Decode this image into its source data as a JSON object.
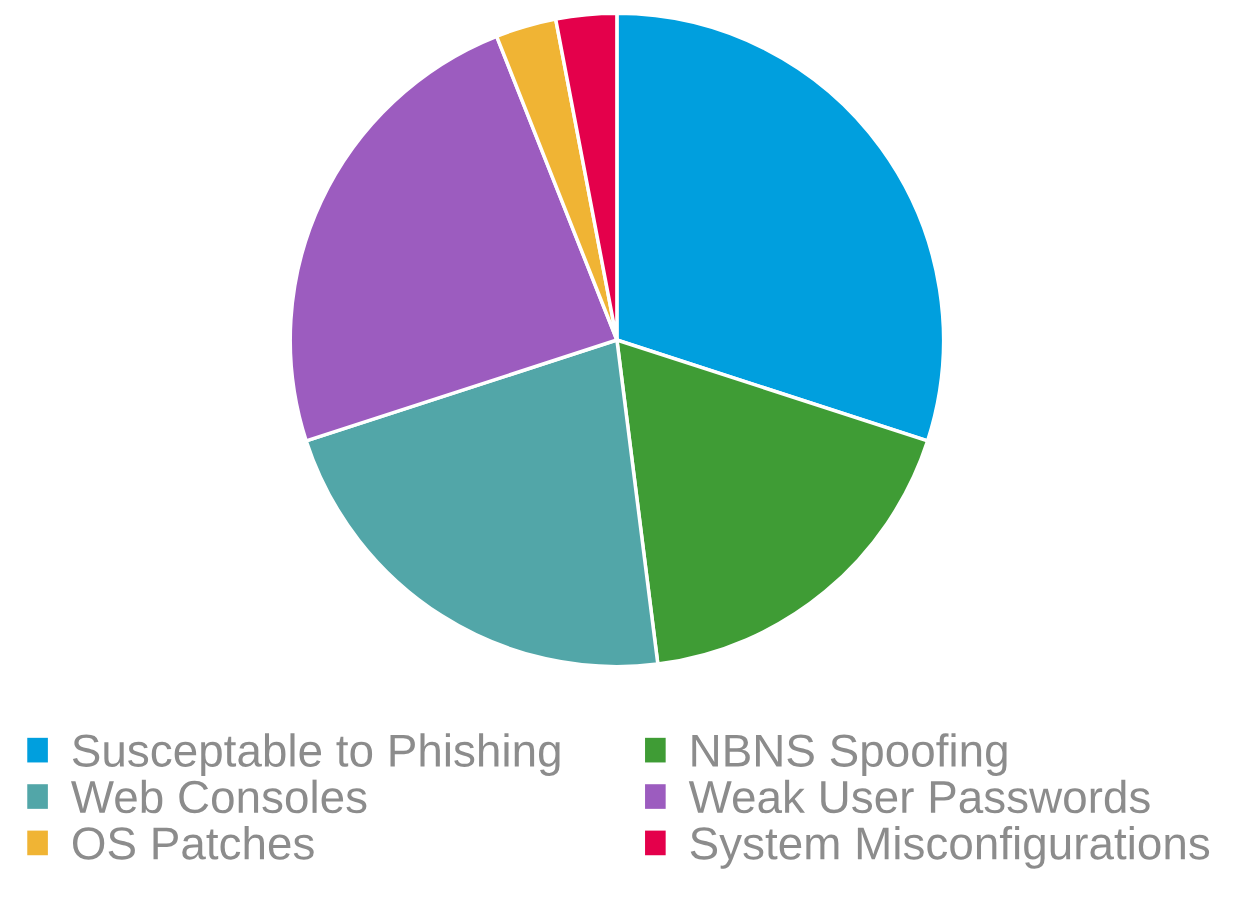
{
  "chart_data": {
    "type": "pie",
    "categories": [
      "Susceptable to Phishing",
      "NBNS Spoofing",
      "Web Consoles",
      "Weak User Passwords",
      "OS Patches",
      "System Misconfigurations"
    ],
    "values": [
      30,
      18,
      22,
      24,
      3,
      3
    ],
    "colors": [
      "#009fde",
      "#3f9c35",
      "#52a6a8",
      "#9c5cbf",
      "#f0b434",
      "#e4004b"
    ],
    "legend": "bottom"
  }
}
